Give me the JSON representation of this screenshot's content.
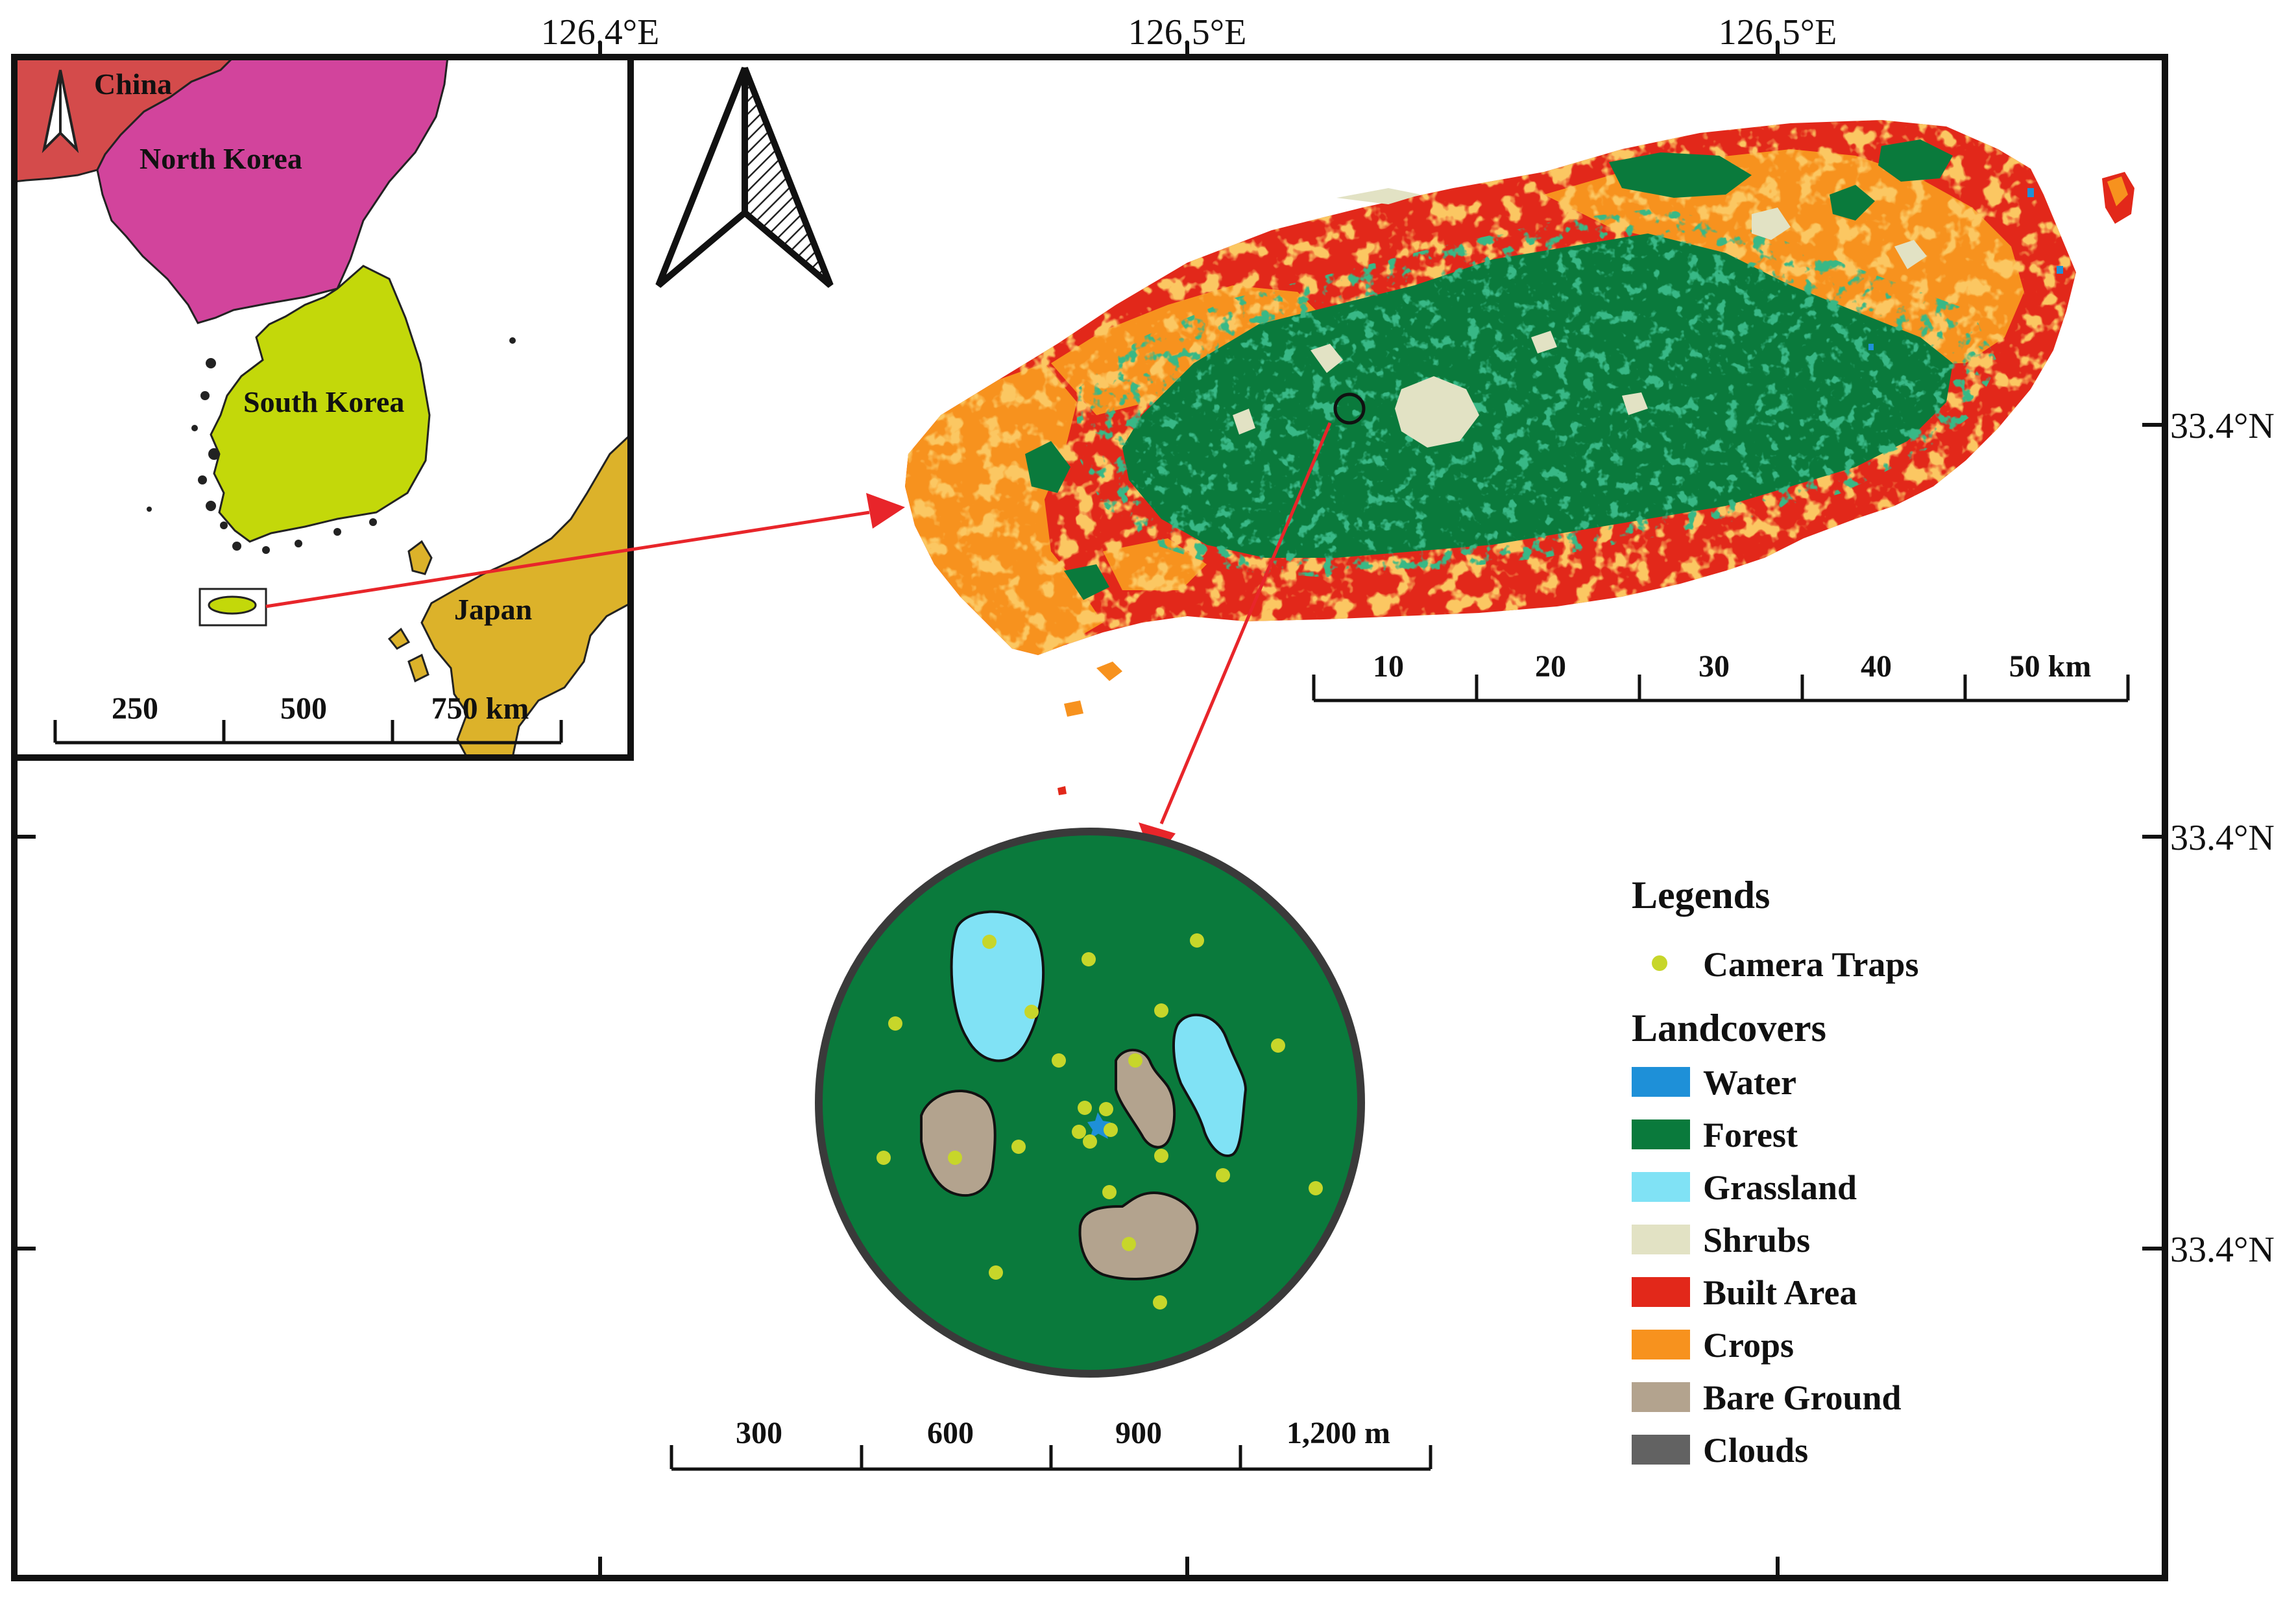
{
  "graticule": {
    "longitude_labels": [
      "126.4°E",
      "126.5°E",
      "126.5°E"
    ],
    "latitude_labels": [
      "33.4°N",
      "33.4°N",
      "33.4°N"
    ]
  },
  "inset": {
    "countries": [
      {
        "name": "China",
        "color": "#d44b4b"
      },
      {
        "name": "North Korea",
        "color": "#d2449c"
      },
      {
        "name": "South Korea",
        "color": "#c3d80a"
      },
      {
        "name": "Japan",
        "color": "#dcb22a"
      }
    ],
    "scale_labels": [
      "250",
      "500",
      "750 km"
    ]
  },
  "island_scale_labels": [
    "10",
    "20",
    "30",
    "40",
    "50 km"
  ],
  "detail_scale_labels": [
    "300",
    "600",
    "900",
    "1,200 m"
  ],
  "legend": {
    "title": "Legends",
    "point_label": "Camera Traps",
    "point_color": "#c7d62a",
    "landcover_title": "Landcovers",
    "landcovers": [
      {
        "label": "Water",
        "color": "#1e90d8"
      },
      {
        "label": "Forest",
        "color": "#0a7a3c"
      },
      {
        "label": "Grassland",
        "color": "#80e2f5"
      },
      {
        "label": "Shrubs",
        "color": "#e2e2c4"
      },
      {
        "label": "Built Area",
        "color": "#e2281a"
      },
      {
        "label": "Crops",
        "color": "#f7921e"
      },
      {
        "label": "Bare Ground",
        "color": "#b3a38e"
      },
      {
        "label": "Clouds",
        "color": "#626262"
      }
    ]
  },
  "icons": {
    "north_arrow": "north-arrow-icon"
  }
}
